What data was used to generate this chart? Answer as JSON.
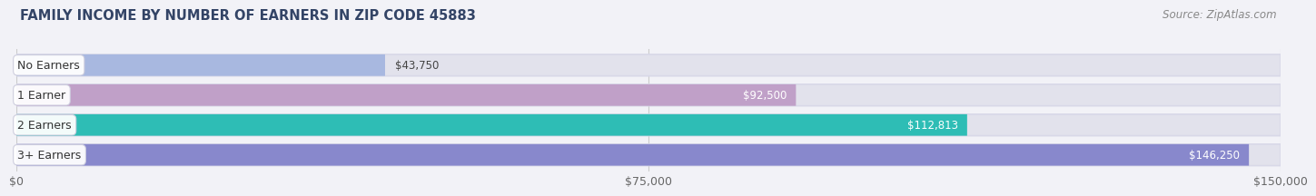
{
  "title": "FAMILY INCOME BY NUMBER OF EARNERS IN ZIP CODE 45883",
  "source": "Source: ZipAtlas.com",
  "categories": [
    "No Earners",
    "1 Earner",
    "2 Earners",
    "3+ Earners"
  ],
  "values": [
    43750,
    92500,
    112813,
    146250
  ],
  "bar_colors": [
    "#a8b8e0",
    "#c0a0c8",
    "#2ebdb5",
    "#8888cc"
  ],
  "value_label_colors": [
    "#555555",
    "#ffffff",
    "#ffffff",
    "#ffffff"
  ],
  "xmax": 150000,
  "xtick_labels": [
    "$0",
    "$75,000",
    "$150,000"
  ],
  "xtick_vals": [
    0,
    75000,
    150000
  ],
  "value_labels": [
    "$43,750",
    "$92,500",
    "$112,813",
    "$146,250"
  ],
  "bg_color": "#f2f2f7",
  "bar_bg_color": "#e2e2ec",
  "title_fontsize": 10.5,
  "source_fontsize": 8.5,
  "tick_fontsize": 9
}
